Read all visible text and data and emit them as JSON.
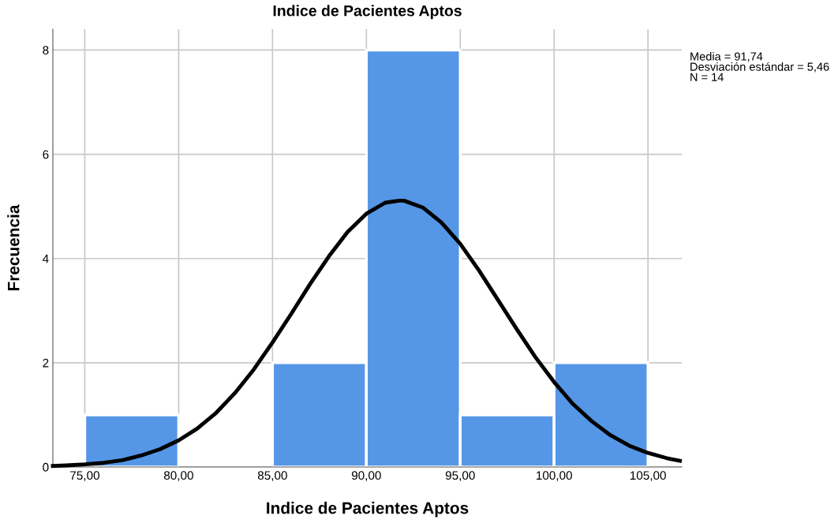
{
  "chart_data": {
    "type": "histogram",
    "title": "Indice de Pacientes Aptos",
    "xlabel": "Indice de Pacientes Aptos",
    "ylabel": "Frecuencia",
    "bins": [
      75,
      80,
      85,
      90,
      95,
      100,
      105
    ],
    "values": [
      1,
      0,
      2,
      8,
      1,
      2
    ],
    "color": "#5596e6",
    "series": [
      {
        "type": "line",
        "color": "#000000",
        "x": [
          73.3,
          74,
          75,
          76,
          77,
          78,
          79,
          80,
          81,
          82,
          83,
          84,
          85,
          86,
          87,
          88,
          89,
          90,
          91,
          91.74,
          92,
          93,
          94,
          95,
          96,
          97,
          98,
          99,
          100,
          101,
          102,
          103,
          104,
          105,
          106,
          106.7
        ],
        "values": [
          0.02,
          0.03,
          0.05,
          0.08,
          0.13,
          0.22,
          0.34,
          0.51,
          0.74,
          1.04,
          1.42,
          1.87,
          2.39,
          2.94,
          3.51,
          4.04,
          4.51,
          4.86,
          5.07,
          5.11,
          5.11,
          4.98,
          4.69,
          4.28,
          3.77,
          3.21,
          2.65,
          2.11,
          1.63,
          1.21,
          0.88,
          0.61,
          0.41,
          0.27,
          0.17,
          0.12
        ]
      }
    ],
    "xlim": [
      73.3,
      106.8
    ],
    "ylim": [
      0,
      8.4
    ],
    "xticks": [
      {
        "value": 75,
        "label": "75,00"
      },
      {
        "value": 80,
        "label": "80,00"
      },
      {
        "value": 85,
        "label": "85,00"
      },
      {
        "value": 90,
        "label": "90,00"
      },
      {
        "value": 95,
        "label": "95,00"
      },
      {
        "value": 100,
        "label": "100,00"
      },
      {
        "value": 105,
        "label": "105,00"
      }
    ],
    "yticks": [
      0,
      2,
      4,
      6,
      8
    ],
    "grid": true,
    "marker": "none",
    "line_style": "solid",
    "annotations": [
      "Media = 91,74\nDesviación estándar = 5,46\nN = 14"
    ]
  }
}
